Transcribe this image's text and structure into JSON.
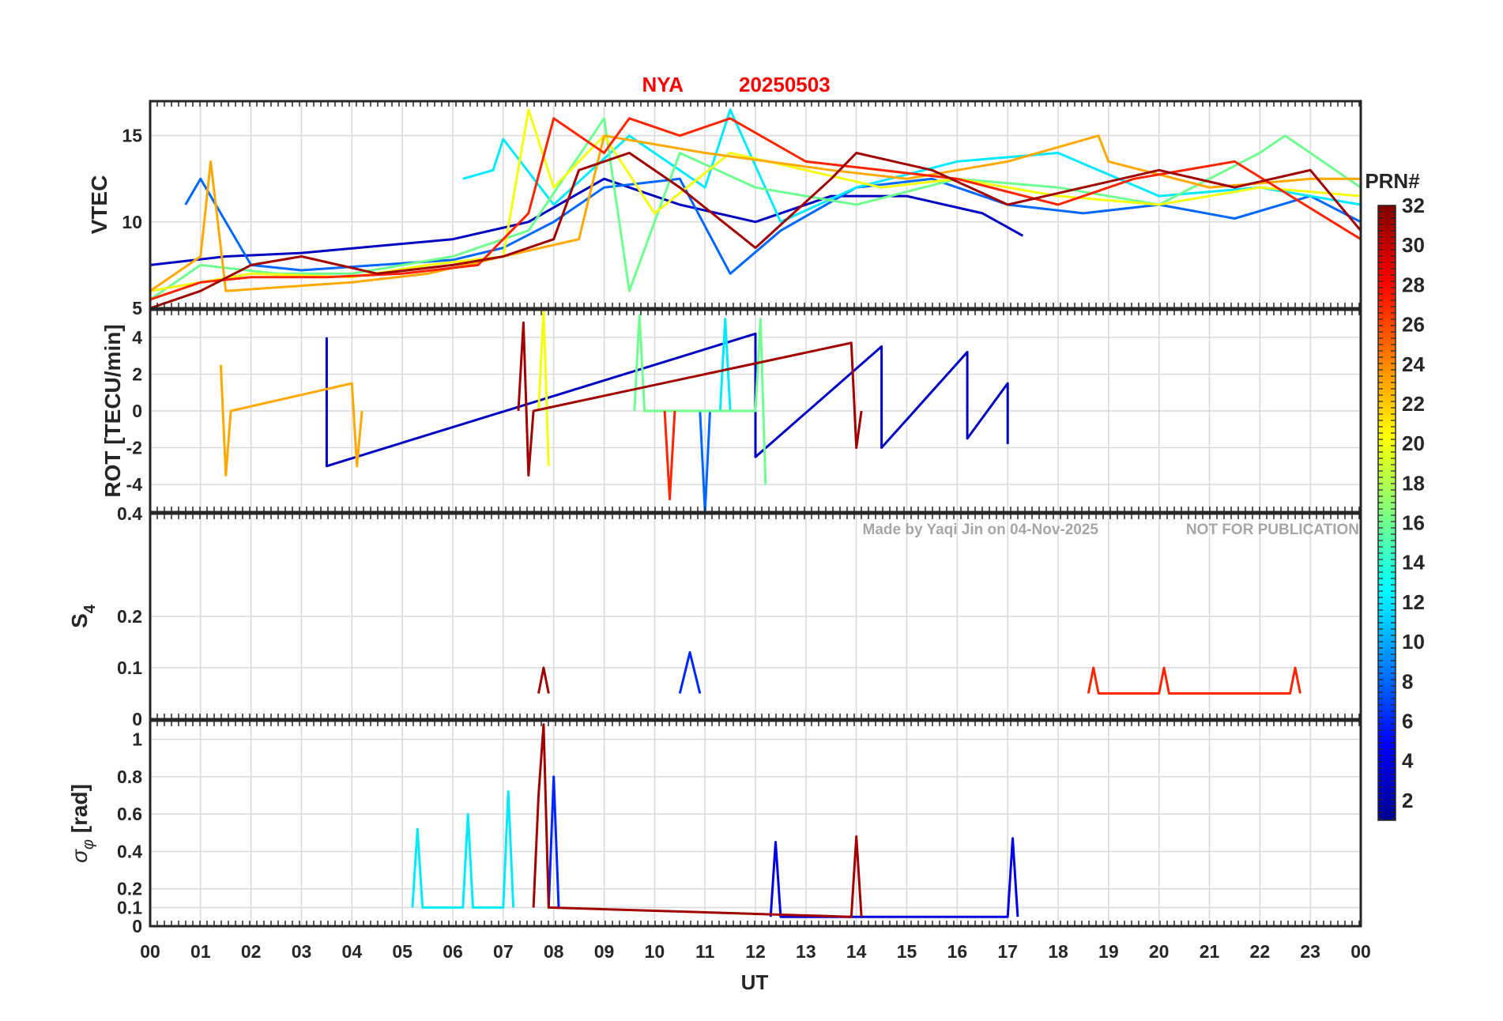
{
  "title": {
    "station": "NYA",
    "date": "20250503"
  },
  "colors": {
    "title": "#ff0000",
    "axes": "#262626",
    "grid": "#d9d9d9",
    "watermark": "#a6a6a6"
  },
  "watermark": {
    "credit": "Made by Yaqi Jin on 04-Nov-2025",
    "notice": "NOT FOR PUBLICATION"
  },
  "colorbar": {
    "label": "PRN#",
    "colormap": "jet",
    "range": [
      1,
      32
    ],
    "ticks": [
      "2",
      "4",
      "6",
      "8",
      "10",
      "12",
      "14",
      "16",
      "18",
      "20",
      "22",
      "24",
      "26",
      "28",
      "30",
      "32"
    ]
  },
  "xaxis": {
    "label": "UT",
    "range_hours": [
      0,
      24
    ],
    "ticks": [
      "00",
      "01",
      "02",
      "03",
      "04",
      "05",
      "06",
      "07",
      "08",
      "09",
      "10",
      "11",
      "12",
      "13",
      "14",
      "15",
      "16",
      "17",
      "18",
      "19",
      "20",
      "21",
      "22",
      "23",
      "00"
    ]
  },
  "chart_data": [
    {
      "type": "line",
      "panel": "vtec",
      "ylabel": "VTEC",
      "ylim": [
        5,
        17
      ],
      "yticks": [
        "5",
        "10",
        "15"
      ],
      "grid": true,
      "series": [
        {
          "prn": 3,
          "x": [
            0.0,
            1.5,
            3.0,
            4.5,
            6.0,
            7.5,
            9.0,
            10.5,
            12.0,
            13.5,
            15.0,
            16.5,
            17.3
          ],
          "values": [
            7.5,
            8.0,
            8.2,
            8.6,
            9.0,
            10.0,
            12.5,
            11.0,
            10.0,
            11.5,
            11.5,
            10.5,
            9.2
          ]
        },
        {
          "prn": 8,
          "x": [
            0.7,
            1.0,
            2.0,
            3.0,
            4.5,
            6.0,
            7.0,
            8.0,
            9.0,
            10.5,
            11.5,
            12.5,
            14.0,
            15.5,
            17.0,
            18.5,
            20.0,
            21.5,
            23.0,
            24.0
          ],
          "values": [
            11.0,
            12.5,
            7.5,
            7.2,
            7.5,
            7.8,
            8.5,
            10.0,
            12.0,
            12.5,
            7.0,
            9.5,
            12.0,
            12.5,
            11.0,
            10.5,
            11.0,
            10.2,
            11.5,
            10.0
          ]
        },
        {
          "prn": 12,
          "x": [
            6.2,
            6.8,
            7.0,
            8.0,
            9.5,
            11.0,
            11.5,
            12.5,
            14.0,
            16.0,
            18.0,
            20.0,
            22.0,
            24.0
          ],
          "values": [
            12.5,
            13.0,
            14.8,
            11.0,
            15.0,
            12.0,
            16.5,
            10.0,
            12.0,
            13.5,
            14.0,
            11.5,
            12.0,
            11.0
          ]
        },
        {
          "prn": 16,
          "x": [
            0.0,
            1.0,
            2.5,
            4.0,
            5.0,
            6.0,
            7.5,
            9.0,
            9.5,
            10.5,
            12.0,
            14.0,
            16.0,
            18.0,
            20.0,
            22.0,
            22.5,
            24.0
          ],
          "values": [
            5.5,
            7.5,
            7.0,
            7.0,
            7.5,
            8.0,
            9.5,
            16.0,
            6.0,
            14.0,
            12.0,
            11.0,
            12.5,
            12.0,
            11.0,
            14.0,
            15.0,
            12.0
          ]
        },
        {
          "prn": 20,
          "x": [
            0.0,
            2.0,
            4.0,
            5.5,
            7.0,
            7.5,
            8.0,
            9.0,
            10.0,
            11.5,
            13.0,
            14.5,
            16.0,
            18.0,
            20.0,
            22.0,
            24.0
          ],
          "values": [
            6.0,
            7.0,
            6.8,
            7.5,
            8.0,
            16.5,
            12.0,
            15.0,
            10.5,
            14.0,
            13.0,
            12.0,
            12.5,
            11.5,
            11.0,
            12.0,
            11.5
          ]
        },
        {
          "prn": 23,
          "x": [
            0.0,
            1.0,
            1.2,
            1.5,
            2.5,
            4.0,
            5.5,
            7.0,
            8.5,
            9.0,
            11.0,
            13.5,
            15.0,
            17.0,
            18.8,
            19.0,
            21.0,
            23.0,
            24.0
          ],
          "values": [
            6.0,
            8.0,
            13.5,
            6.0,
            6.2,
            6.5,
            7.0,
            8.0,
            9.0,
            15.0,
            14.0,
            13.0,
            12.5,
            13.5,
            15.0,
            13.5,
            12.0,
            12.5,
            12.5
          ]
        },
        {
          "prn": 27,
          "x": [
            0.0,
            1.0,
            2.0,
            3.5,
            5.0,
            6.5,
            7.5,
            8.0,
            9.0,
            9.5,
            10.5,
            11.5,
            13.0,
            14.5,
            16.0,
            18.0,
            19.5,
            21.5,
            24.0
          ],
          "values": [
            5.5,
            6.5,
            6.8,
            6.8,
            7.0,
            7.5,
            10.5,
            16.0,
            14.0,
            16.0,
            15.0,
            16.0,
            13.5,
            13.0,
            12.5,
            11.0,
            12.5,
            13.5,
            9.0
          ]
        },
        {
          "prn": 31,
          "x": [
            0.0,
            1.0,
            2.0,
            3.0,
            4.5,
            6.0,
            7.0,
            8.0,
            8.5,
            9.5,
            10.5,
            12.0,
            13.5,
            14.0,
            15.5,
            17.0,
            18.5,
            20.0,
            21.5,
            23.0,
            24.0
          ],
          "values": [
            5.0,
            6.0,
            7.5,
            8.0,
            7.0,
            7.5,
            8.0,
            9.0,
            13.0,
            14.0,
            12.0,
            8.5,
            12.5,
            14.0,
            13.0,
            11.0,
            12.0,
            13.0,
            12.0,
            13.0,
            9.5
          ]
        }
      ]
    },
    {
      "type": "line",
      "panel": "rot",
      "ylabel": "ROT [TECU/min]",
      "ylim": [
        -5.5,
        5.5
      ],
      "yticks": [
        "-4",
        "-2",
        "0",
        "2",
        "4"
      ],
      "grid": true,
      "series": [
        {
          "prn": 3,
          "x": [
            3.5,
            3.5,
            12.0,
            12.0,
            14.5,
            14.5,
            16.2,
            16.2,
            17.0,
            17.0
          ],
          "values": [
            4.0,
            -3.0,
            4.2,
            -2.5,
            3.5,
            -2.0,
            3.2,
            -1.5,
            1.5,
            -1.8
          ]
        },
        {
          "prn": 8,
          "x": [
            10.9,
            11.0,
            11.1
          ],
          "values": [
            0.0,
            -5.5,
            0.0
          ]
        },
        {
          "prn": 12,
          "x": [
            11.3,
            11.4,
            11.5
          ],
          "values": [
            0.0,
            5.0,
            0.0
          ]
        },
        {
          "prn": 16,
          "x": [
            9.6,
            9.7,
            9.8,
            12.0,
            12.1,
            12.2
          ],
          "values": [
            0.0,
            5.2,
            0.0,
            0.0,
            5.0,
            -4.0
          ]
        },
        {
          "prn": 20,
          "x": [
            7.7,
            7.8,
            7.9
          ],
          "values": [
            0.0,
            5.5,
            -3.0
          ]
        },
        {
          "prn": 23,
          "x": [
            1.4,
            1.5,
            1.6,
            4.0,
            4.1,
            4.2
          ],
          "values": [
            2.5,
            -3.5,
            0.0,
            1.5,
            -3.0,
            0.0
          ]
        },
        {
          "prn": 27,
          "x": [
            10.2,
            10.3,
            10.4
          ],
          "values": [
            0.0,
            -4.8,
            0.0
          ]
        },
        {
          "prn": 31,
          "x": [
            7.3,
            7.4,
            7.5,
            7.6,
            13.9,
            14.0,
            14.1
          ],
          "values": [
            0.0,
            4.8,
            -3.5,
            0.0,
            3.7,
            -2.0,
            0.0
          ]
        }
      ]
    },
    {
      "type": "line",
      "panel": "s4",
      "ylabel": "S4",
      "ylim": [
        0,
        0.4
      ],
      "yticks": [
        "0",
        "0.1",
        "0.2",
        "0.4"
      ],
      "grid": true,
      "series": [
        {
          "prn": 6,
          "x": [
            10.5,
            10.7,
            10.9
          ],
          "values": [
            0.05,
            0.13,
            0.05
          ]
        },
        {
          "prn": 27,
          "x": [
            18.6,
            18.7,
            18.8,
            20.0,
            20.1,
            20.2,
            22.6,
            22.7,
            22.8
          ],
          "values": [
            0.05,
            0.1,
            0.05,
            0.05,
            0.1,
            0.05,
            0.05,
            0.1,
            0.05
          ]
        },
        {
          "prn": 31,
          "x": [
            7.7,
            7.8,
            7.9
          ],
          "values": [
            0.05,
            0.1,
            0.05
          ]
        }
      ]
    },
    {
      "type": "line",
      "panel": "sigma_phi",
      "ylabel": "σφ [rad]",
      "ylim": [
        0,
        1.1
      ],
      "yticks": [
        "0",
        "0.1",
        "0.2",
        "0.4",
        "0.6",
        "0.8",
        "1"
      ],
      "grid": true,
      "series": [
        {
          "prn": 4,
          "x": [
            12.3,
            12.4,
            12.5,
            17.0,
            17.1,
            17.2
          ],
          "values": [
            0.05,
            0.45,
            0.05,
            0.05,
            0.47,
            0.05
          ]
        },
        {
          "prn": 6,
          "x": [
            7.9,
            8.0,
            8.1
          ],
          "values": [
            0.1,
            0.8,
            0.1
          ]
        },
        {
          "prn": 12,
          "x": [
            5.2,
            5.3,
            5.4,
            6.2,
            6.3,
            6.4,
            7.0,
            7.1,
            7.2
          ],
          "values": [
            0.1,
            0.52,
            0.1,
            0.1,
            0.6,
            0.1,
            0.1,
            0.72,
            0.1
          ]
        },
        {
          "prn": 31,
          "x": [
            7.6,
            7.7,
            7.8,
            7.9,
            13.9,
            14.0,
            14.1
          ],
          "values": [
            0.1,
            0.7,
            1.08,
            0.1,
            0.05,
            0.48,
            0.05
          ]
        }
      ]
    }
  ]
}
